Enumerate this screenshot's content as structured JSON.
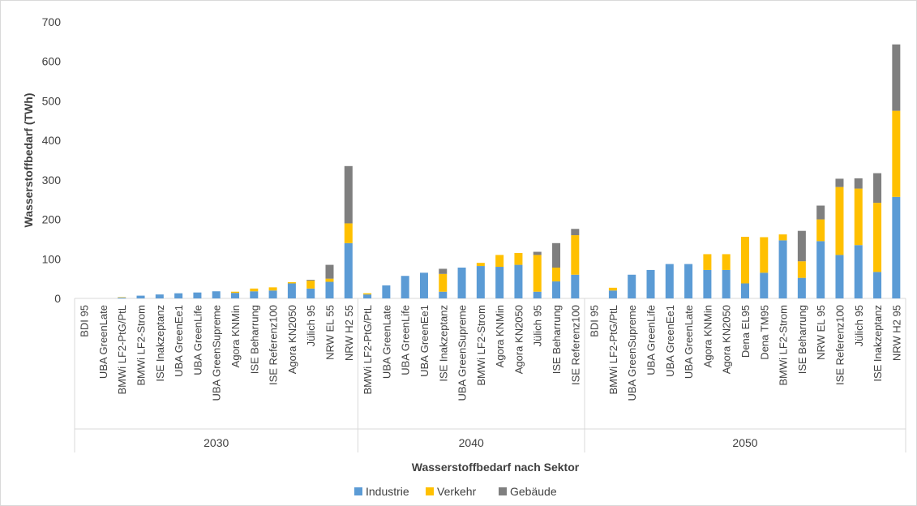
{
  "chart_data": {
    "type": "bar",
    "stacked": true,
    "ylabel": "Wasserstoffbedarf (TWh)",
    "xlabel": "Wasserstoffbedarf nach Sektor",
    "ylim": [
      0,
      700
    ],
    "yticks": [
      "0",
      "100",
      "200",
      "300",
      "400",
      "500",
      "600",
      "700"
    ],
    "grid": false,
    "legend": "bottom",
    "series": [
      {
        "name": "Industrie",
        "color": "#5b9bd5"
      },
      {
        "name": "Verkehr",
        "color": "#ffc000"
      },
      {
        "name": "Gebäude",
        "color": "#7f7f7f"
      }
    ],
    "groups": [
      {
        "label": "2030",
        "categories": [
          "BDI 95",
          "UBA GreenLate",
          "BMWi LF2-PtG/PtL",
          "BMWi LF2-Strom",
          "ISE Inakzeptanz",
          "UBA GreenEe1",
          "UBA GreenLife",
          "UBA GreenSupreme",
          "Agora KNMin",
          "ISE Beharrung",
          "ISE Referenz100",
          "Agora KN2050",
          "Jülich 95",
          "NRW EL 55",
          "NRW H2 55"
        ],
        "values": [
          [
            0,
            0,
            0
          ],
          [
            0,
            0,
            0
          ],
          [
            2,
            1,
            0
          ],
          [
            7,
            0,
            0
          ],
          [
            10,
            0,
            0
          ],
          [
            13,
            0,
            0
          ],
          [
            15,
            0,
            0
          ],
          [
            18,
            0,
            0
          ],
          [
            14,
            3,
            0
          ],
          [
            18,
            7,
            0
          ],
          [
            20,
            8,
            0
          ],
          [
            38,
            3,
            0
          ],
          [
            25,
            20,
            2
          ],
          [
            42,
            8,
            35
          ],
          [
            140,
            50,
            145
          ]
        ]
      },
      {
        "label": "2040",
        "categories": [
          "BMWi LF2-PtG/PtL",
          "UBA GreenLate",
          "UBA GreenLife",
          "UBA GreenEe1",
          "ISE Inakzeptanz",
          "UBA GreenSupreme",
          "BMWi LF2-Strom",
          "Agora KNMin",
          "Agora KN2050",
          "Jülich 95",
          "ISE Beharrung",
          "ISE Referenz100"
        ],
        "values": [
          [
            10,
            3,
            0
          ],
          [
            33,
            0,
            0
          ],
          [
            57,
            0,
            0
          ],
          [
            65,
            0,
            0
          ],
          [
            17,
            45,
            13
          ],
          [
            78,
            0,
            0
          ],
          [
            82,
            8,
            0
          ],
          [
            80,
            30,
            0
          ],
          [
            85,
            30,
            0
          ],
          [
            17,
            93,
            8
          ],
          [
            43,
            35,
            62
          ],
          [
            60,
            100,
            16
          ]
        ]
      },
      {
        "label": "2050",
        "categories": [
          "BDI 95",
          "BMWi LF2-PtG/PtL",
          "UBA GreenSupreme",
          "UBA GreenLife",
          "UBA GreenEe1",
          "UBA GreenLate",
          "Agora KNMin",
          "Agora KN2050",
          "Dena EL95",
          "Dena TM95",
          "BMWi LF2-Strom",
          "ISE Beharrung",
          "NRW EL 95",
          "ISE Referenz100",
          "Jülich 95",
          "ISE Inakzeptanz",
          "NRW H2 95"
        ],
        "values": [
          [
            0,
            0,
            0
          ],
          [
            20,
            7,
            0
          ],
          [
            60,
            0,
            0
          ],
          [
            72,
            0,
            0
          ],
          [
            87,
            0,
            0
          ],
          [
            87,
            0,
            0
          ],
          [
            72,
            40,
            0
          ],
          [
            72,
            40,
            0
          ],
          [
            38,
            118,
            0
          ],
          [
            65,
            90,
            0
          ],
          [
            147,
            15,
            0
          ],
          [
            52,
            42,
            77
          ],
          [
            145,
            55,
            35
          ],
          [
            110,
            172,
            21
          ],
          [
            135,
            143,
            26
          ],
          [
            67,
            175,
            75
          ],
          [
            257,
            218,
            168
          ]
        ]
      }
    ]
  }
}
